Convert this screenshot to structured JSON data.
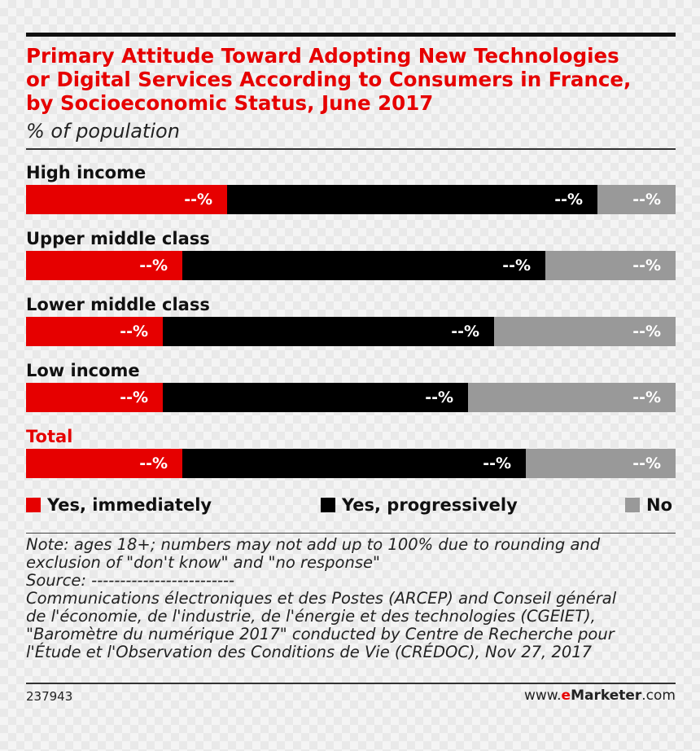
{
  "chart_data": {
    "type": "bar",
    "orientation": "horizontal",
    "stacked": true,
    "title": "Primary Attitude Toward Adopting New Technologies\nor Digital Services According to Consumers in France,\nby Socioeconomic Status, June 2017",
    "subtitle": "% of population",
    "categories": [
      "High income",
      "Upper middle class",
      "Lower middle class",
      "Low income",
      "Total"
    ],
    "series": [
      {
        "name": "Yes, immediately",
        "color": "#e60000",
        "values": [
          31,
          24,
          21,
          21,
          24
        ],
        "labels": [
          "--%",
          "--%",
          "--%",
          "--%",
          "--%"
        ]
      },
      {
        "name": "Yes, progressively",
        "color": "#000000",
        "values": [
          57,
          56,
          51,
          47,
          53
        ],
        "labels": [
          "--%",
          "--%",
          "--%",
          "--%",
          "--%"
        ]
      },
      {
        "name": "No",
        "color": "#999999",
        "values": [
          12,
          20,
          28,
          32,
          23
        ],
        "labels": [
          "--%",
          "--%",
          "--%",
          "--%",
          "--%"
        ]
      }
    ],
    "legend_position": "bottom"
  },
  "note": {
    "line1": "Note: ages 18+; numbers may not add up to 100% due to rounding and",
    "line2": "exclusion of \"don't know\" and \"no response\"",
    "source_label": "Source: -------------------------",
    "source_lines": [
      "Communications électroniques et des Postes (ARCEP) and Conseil général",
      "de l'économie, de l'industrie, de l'énergie et des technologies (CGEIET),",
      "\"Baromètre du numérique 2017\" conducted by Centre de Recherche pour",
      "l'Étude et l'Observation des Conditions de Vie (CRÉDOC), Nov 27, 2017"
    ]
  },
  "footer": {
    "chart_id": "237943",
    "brand_prefix": "www.",
    "brand_e": "e",
    "brand_name": "Marketer",
    "brand_suffix": ".com"
  }
}
